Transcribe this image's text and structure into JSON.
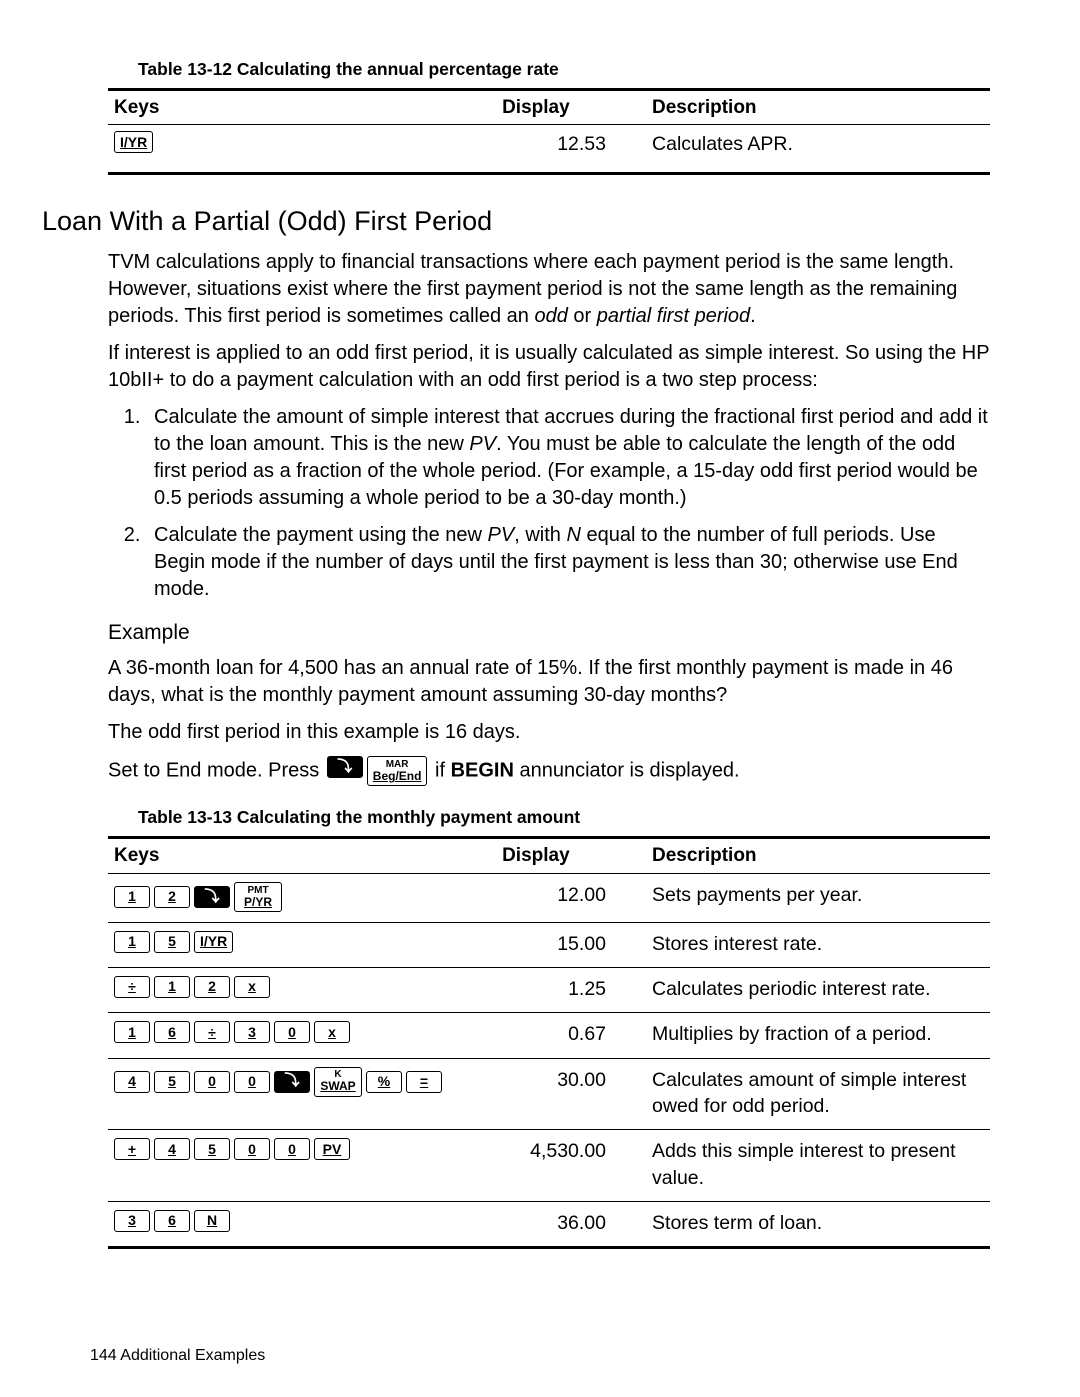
{
  "table12": {
    "caption": "Table 13-12  Calculating the annual percentage rate",
    "headers": {
      "keys": "Keys",
      "display": "Display",
      "description": "Description"
    },
    "rows": [
      {
        "keys": [
          {
            "type": "key",
            "label": "I/YR",
            "underline": true
          }
        ],
        "display": "12.53",
        "description": "Calculates APR."
      }
    ]
  },
  "section_title": "Loan With a Partial (Odd) First Period",
  "para1a": "TVM calculations apply to financial transactions where each payment period is the same length. However, situations exist where the first payment period is not the same length as the remaining periods. This first period is sometimes called an ",
  "para1_em1": "odd",
  "para1b": " or ",
  "para1_em2": "partial first period",
  "para1c": ".",
  "para2": "If interest is applied to an odd first period, it is usually calculated as simple interest. So using the HP 10bII+ to do a payment calculation with an odd first period is a two step process:",
  "step1a": "Calculate the amount of simple interest that accrues during the fractional first period and add it to the loan amount. This is the new ",
  "step1_em": "PV",
  "step1b": ". You must be able to calculate the length of the odd first period as a fraction of the whole period. (For example, a 15-day odd first period would be 0.5 periods assuming a whole period to be a 30-day month.)",
  "step2a": "Calculate the payment using the new ",
  "step2_em1": "PV",
  "step2b": ", with ",
  "step2_em2": "N",
  "step2c": " equal to the number of full periods. Use Begin mode if the number of days until the first payment is less than 30; otherwise use End mode.",
  "example_heading": "Example",
  "example_para": "A 36-month loan for 4,500 has an annual rate of 15%. If the first monthly payment is made in 46 days, what is the monthly payment amount assuming 30-day months?",
  "odd_para": "The odd first period in this example is 16 days.",
  "set_end_a": "Set to End mode. Press ",
  "set_end_b": " if ",
  "set_end_begin": "BEGIN",
  "set_end_c": " annunciator is displayed.",
  "inline_keys": [
    {
      "type": "dark",
      "glyph": "�និ",
      "label": "↳"
    },
    {
      "type": "mid",
      "top": "MAR",
      "bot": "Beg/End"
    }
  ],
  "table13": {
    "caption": "Table 13-13  Calculating the monthly payment amount",
    "headers": {
      "keys": "Keys",
      "display": "Display",
      "description": "Description"
    },
    "rows": [
      {
        "keys": [
          {
            "type": "key",
            "label": "1",
            "underline": true
          },
          {
            "type": "key",
            "label": "2",
            "underline": true
          },
          {
            "type": "dark",
            "label": "↳"
          },
          {
            "type": "mid",
            "top": "PMT",
            "bot": "P/YR"
          }
        ],
        "display": "12.00",
        "description": "Sets payments per year."
      },
      {
        "keys": [
          {
            "type": "key",
            "label": "1",
            "underline": true
          },
          {
            "type": "key",
            "label": "5",
            "underline": true
          },
          {
            "type": "key",
            "label": "I/YR",
            "underline": true
          }
        ],
        "display": "15.00",
        "description": "Stores interest rate."
      },
      {
        "keys": [
          {
            "type": "key",
            "label": "÷",
            "underline": true
          },
          {
            "type": "key",
            "label": "1",
            "underline": true
          },
          {
            "type": "key",
            "label": "2",
            "underline": true
          },
          {
            "type": "key",
            "label": "x",
            "underline": true
          }
        ],
        "display": "1.25",
        "description": "Calculates periodic interest rate."
      },
      {
        "keys": [
          {
            "type": "key",
            "label": "1",
            "underline": true
          },
          {
            "type": "key",
            "label": "6",
            "underline": true
          },
          {
            "type": "key",
            "label": "÷",
            "underline": true
          },
          {
            "type": "key",
            "label": "3",
            "underline": true
          },
          {
            "type": "key",
            "label": "0",
            "underline": true
          },
          {
            "type": "key",
            "label": "x",
            "underline": true
          }
        ],
        "display": "0.67",
        "description": "Multiplies by fraction of a period."
      },
      {
        "keys": [
          {
            "type": "key",
            "label": "4",
            "underline": true
          },
          {
            "type": "key",
            "label": "5",
            "underline": true
          },
          {
            "type": "key",
            "label": "0",
            "underline": true
          },
          {
            "type": "key",
            "label": "0",
            "underline": true
          },
          {
            "type": "dark",
            "label": "↳"
          },
          {
            "type": "mid",
            "top": "K",
            "bot": "SWAP"
          },
          {
            "type": "key",
            "label": "%",
            "underline": true
          },
          {
            "type": "key",
            "label": "=",
            "underline": true
          }
        ],
        "display": "30.00",
        "description": "Calculates amount of simple interest owed for odd period."
      },
      {
        "keys": [
          {
            "type": "key",
            "label": "+",
            "underline": true
          },
          {
            "type": "key",
            "label": "4",
            "underline": true
          },
          {
            "type": "key",
            "label": "5",
            "underline": true
          },
          {
            "type": "key",
            "label": "0",
            "underline": true
          },
          {
            "type": "key",
            "label": "0",
            "underline": true
          },
          {
            "type": "key",
            "label": "PV",
            "underline": true
          }
        ],
        "display": "4,530.00",
        "description": "Adds this simple interest to present value."
      },
      {
        "keys": [
          {
            "type": "key",
            "label": "3",
            "underline": true
          },
          {
            "type": "key",
            "label": "6",
            "underline": true
          },
          {
            "type": "key",
            "label": "N",
            "underline": true
          }
        ],
        "display": "36.00",
        "description": "Stores term of loan."
      }
    ]
  },
  "footer_page": "144",
  "footer_text": " Additional Examples"
}
